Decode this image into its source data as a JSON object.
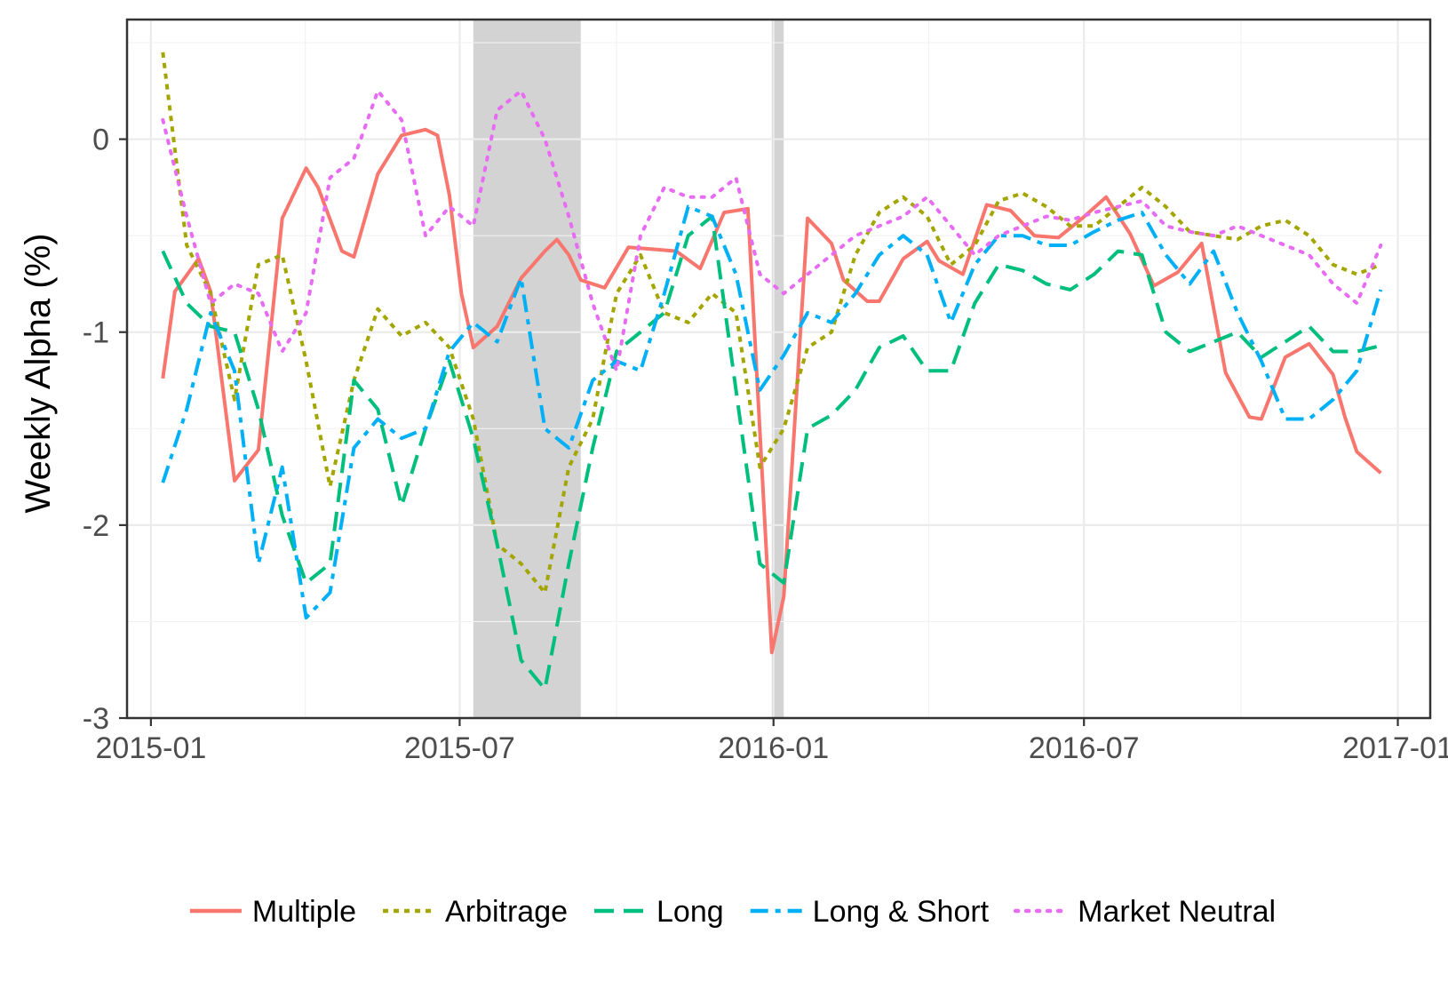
{
  "chart_data": {
    "type": "line",
    "xlabel": "",
    "ylabel": "Weekly Alpha (%)",
    "x_ticks": [
      "2015-01",
      "2015-07",
      "2016-01",
      "2016-07",
      "2017-01"
    ],
    "y_ticks": [
      "0",
      "-1",
      "-2",
      "-3"
    ],
    "xlim": [
      "2014-12-18",
      "2017-01-20"
    ],
    "ylim": [
      -3.0,
      0.62
    ],
    "grid": true,
    "legend_position": "bottom",
    "shaded_periods": [
      {
        "start": "2015-07-09",
        "end": "2015-09-10"
      },
      {
        "start": "2015-12-31",
        "end": "2016-01-07"
      }
    ],
    "series": [
      {
        "name": "Multiple",
        "color": "#F8766D",
        "dash": "solid",
        "x": [
          "2015-01-08",
          "2015-01-15",
          "2015-01-29",
          "2015-02-05",
          "2015-02-19",
          "2015-03-05",
          "2015-03-19",
          "2015-04-02",
          "2015-04-09",
          "2015-04-23",
          "2015-04-30",
          "2015-05-14",
          "2015-05-28",
          "2015-06-11",
          "2015-06-18",
          "2015-06-25",
          "2015-07-02",
          "2015-07-09",
          "2015-07-23",
          "2015-08-06",
          "2015-08-20",
          "2015-08-27",
          "2015-09-03",
          "2015-09-10",
          "2015-09-24",
          "2015-10-08",
          "2015-10-22",
          "2015-11-05",
          "2015-11-19",
          "2015-12-03",
          "2015-12-17",
          "2015-12-31",
          "2016-01-07",
          "2016-01-21",
          "2016-02-04",
          "2016-02-11",
          "2016-02-25",
          "2016-03-03",
          "2016-03-17",
          "2016-03-31",
          "2016-04-07",
          "2016-04-21",
          "2016-05-05",
          "2016-05-19",
          "2016-06-02",
          "2016-06-16",
          "2016-06-30",
          "2016-07-14",
          "2016-07-28",
          "2016-08-11",
          "2016-08-25",
          "2016-09-08",
          "2016-09-22",
          "2016-10-06",
          "2016-10-13",
          "2016-10-27",
          "2016-11-10",
          "2016-11-24",
          "2016-12-01",
          "2016-12-08",
          "2016-12-22"
        ],
        "y": [
          -1.24,
          -0.79,
          -0.62,
          -0.79,
          -1.77,
          -1.61,
          -0.41,
          -0.15,
          -0.25,
          -0.58,
          -0.61,
          -0.18,
          0.02,
          0.05,
          0.02,
          -0.29,
          -0.8,
          -1.08,
          -0.97,
          -0.72,
          -0.58,
          -0.52,
          -0.6,
          -0.73,
          -0.77,
          -0.56,
          -0.57,
          -0.58,
          -0.67,
          -0.38,
          -0.36,
          -2.66,
          -2.37,
          -0.41,
          -0.54,
          -0.73,
          -0.84,
          -0.84,
          -0.62,
          -0.53,
          -0.63,
          -0.7,
          -0.34,
          -0.37,
          -0.5,
          -0.51,
          -0.41,
          -0.3,
          -0.49,
          -0.76,
          -0.69,
          -0.54,
          -1.21,
          -1.44,
          -1.45,
          -1.13,
          -1.06,
          -1.22,
          -1.44,
          -1.62,
          -1.73
        ]
      },
      {
        "name": "Arbitrage",
        "color": "#A3A500",
        "dash": "short",
        "x": [
          "2015-01-08",
          "2015-01-22",
          "2015-02-05",
          "2015-02-19",
          "2015-03-05",
          "2015-03-19",
          "2015-04-02",
          "2015-04-16",
          "2015-04-30",
          "2015-05-14",
          "2015-05-28",
          "2015-06-11",
          "2015-06-25",
          "2015-07-09",
          "2015-07-23",
          "2015-08-06",
          "2015-08-20",
          "2015-09-03",
          "2015-09-17",
          "2015-10-01",
          "2015-10-15",
          "2015-10-29",
          "2015-11-12",
          "2015-11-26",
          "2015-12-10",
          "2015-12-24",
          "2016-01-07",
          "2016-01-21",
          "2016-02-04",
          "2016-02-18",
          "2016-03-03",
          "2016-03-17",
          "2016-03-31",
          "2016-04-14",
          "2016-04-28",
          "2016-05-12",
          "2016-05-26",
          "2016-06-09",
          "2016-06-23",
          "2016-07-07",
          "2016-07-21",
          "2016-08-04",
          "2016-08-18",
          "2016-09-01",
          "2016-09-15",
          "2016-09-29",
          "2016-10-13",
          "2016-10-27",
          "2016-11-10",
          "2016-11-24",
          "2016-12-08",
          "2016-12-22"
        ],
        "y": [
          0.45,
          -0.55,
          -0.8,
          -1.35,
          -0.65,
          -0.6,
          -1.15,
          -1.8,
          -1.25,
          -0.88,
          -1.02,
          -0.95,
          -1.08,
          -1.45,
          -2.1,
          -2.2,
          -2.35,
          -1.7,
          -1.45,
          -0.8,
          -0.6,
          -0.9,
          -0.95,
          -0.8,
          -0.9,
          -1.7,
          -1.5,
          -1.08,
          -1.0,
          -0.6,
          -0.38,
          -0.3,
          -0.4,
          -0.65,
          -0.55,
          -0.32,
          -0.28,
          -0.35,
          -0.45,
          -0.45,
          -0.35,
          -0.25,
          -0.35,
          -0.48,
          -0.5,
          -0.52,
          -0.45,
          -0.42,
          -0.5,
          -0.65,
          -0.7,
          -0.65
        ]
      },
      {
        "name": "Long",
        "color": "#00BF7D",
        "dash": "long",
        "x": [
          "2015-01-08",
          "2015-01-22",
          "2015-02-05",
          "2015-02-19",
          "2015-03-05",
          "2015-03-19",
          "2015-04-02",
          "2015-04-16",
          "2015-04-30",
          "2015-05-14",
          "2015-05-28",
          "2015-06-11",
          "2015-06-25",
          "2015-07-09",
          "2015-07-23",
          "2015-08-06",
          "2015-08-20",
          "2015-09-03",
          "2015-09-17",
          "2015-10-01",
          "2015-10-15",
          "2015-10-29",
          "2015-11-12",
          "2015-11-26",
          "2015-12-10",
          "2015-12-24",
          "2016-01-07",
          "2016-01-21",
          "2016-02-04",
          "2016-02-18",
          "2016-03-03",
          "2016-03-17",
          "2016-03-31",
          "2016-04-14",
          "2016-04-28",
          "2016-05-12",
          "2016-05-26",
          "2016-06-09",
          "2016-06-23",
          "2016-07-07",
          "2016-07-21",
          "2016-08-04",
          "2016-08-18",
          "2016-09-01",
          "2016-09-15",
          "2016-09-29",
          "2016-10-13",
          "2016-10-27",
          "2016-11-10",
          "2016-11-24",
          "2016-12-08",
          "2016-12-22"
        ],
        "y": [
          -0.58,
          -0.85,
          -0.97,
          -1.0,
          -1.4,
          -1.95,
          -2.3,
          -2.2,
          -1.25,
          -1.4,
          -1.9,
          -1.5,
          -1.15,
          -1.55,
          -2.1,
          -2.7,
          -2.85,
          -2.2,
          -1.6,
          -1.1,
          -1.0,
          -0.9,
          -0.5,
          -0.4,
          -1.3,
          -2.2,
          -2.3,
          -1.5,
          -1.43,
          -1.3,
          -1.08,
          -1.02,
          -1.2,
          -1.2,
          -0.85,
          -0.65,
          -0.68,
          -0.75,
          -0.78,
          -0.7,
          -0.58,
          -0.6,
          -1.0,
          -1.1,
          -1.05,
          -1.0,
          -1.13,
          -1.05,
          -0.97,
          -1.1,
          -1.1,
          -1.07
        ]
      },
      {
        "name": "Long & Short",
        "color": "#00B0F6",
        "dash": "dashdot",
        "x": [
          "2015-01-08",
          "2015-01-22",
          "2015-02-05",
          "2015-02-19",
          "2015-03-05",
          "2015-03-19",
          "2015-04-02",
          "2015-04-16",
          "2015-04-30",
          "2015-05-14",
          "2015-05-28",
          "2015-06-11",
          "2015-06-25",
          "2015-07-09",
          "2015-07-23",
          "2015-08-06",
          "2015-08-20",
          "2015-09-03",
          "2015-09-17",
          "2015-10-01",
          "2015-10-15",
          "2015-10-29",
          "2015-11-12",
          "2015-11-26",
          "2015-12-10",
          "2015-12-24",
          "2016-01-07",
          "2016-01-21",
          "2016-02-04",
          "2016-02-18",
          "2016-03-03",
          "2016-03-17",
          "2016-03-31",
          "2016-04-14",
          "2016-04-28",
          "2016-05-12",
          "2016-05-26",
          "2016-06-09",
          "2016-06-23",
          "2016-07-07",
          "2016-07-21",
          "2016-08-04",
          "2016-08-18",
          "2016-09-01",
          "2016-09-15",
          "2016-09-29",
          "2016-10-13",
          "2016-10-27",
          "2016-11-10",
          "2016-11-24",
          "2016-12-08",
          "2016-12-22"
        ],
        "y": [
          -1.78,
          -1.4,
          -0.9,
          -1.2,
          -2.2,
          -1.7,
          -2.48,
          -2.35,
          -1.6,
          -1.45,
          -1.55,
          -1.5,
          -1.1,
          -0.95,
          -1.05,
          -0.72,
          -1.5,
          -1.6,
          -1.25,
          -1.15,
          -1.2,
          -0.8,
          -0.35,
          -0.4,
          -0.7,
          -1.3,
          -1.12,
          -0.9,
          -0.95,
          -0.8,
          -0.6,
          -0.5,
          -0.6,
          -0.95,
          -0.65,
          -0.5,
          -0.5,
          -0.55,
          -0.55,
          -0.48,
          -0.42,
          -0.38,
          -0.6,
          -0.75,
          -0.58,
          -0.9,
          -1.15,
          -1.45,
          -1.45,
          -1.35,
          -1.2,
          -0.78
        ]
      },
      {
        "name": "Market Neutral",
        "color": "#E76BF3",
        "dash": "dotted",
        "x": [
          "2015-01-08",
          "2015-01-22",
          "2015-02-05",
          "2015-02-19",
          "2015-03-05",
          "2015-03-19",
          "2015-04-02",
          "2015-04-16",
          "2015-04-30",
          "2015-05-14",
          "2015-05-28",
          "2015-06-11",
          "2015-06-25",
          "2015-07-09",
          "2015-07-23",
          "2015-08-06",
          "2015-08-20",
          "2015-09-03",
          "2015-09-17",
          "2015-10-01",
          "2015-10-15",
          "2015-10-29",
          "2015-11-12",
          "2015-11-26",
          "2015-12-10",
          "2015-12-24",
          "2016-01-07",
          "2016-01-21",
          "2016-02-04",
          "2016-02-18",
          "2016-03-03",
          "2016-03-17",
          "2016-03-31",
          "2016-04-14",
          "2016-04-28",
          "2016-05-12",
          "2016-05-26",
          "2016-06-09",
          "2016-06-23",
          "2016-07-07",
          "2016-07-21",
          "2016-08-04",
          "2016-08-18",
          "2016-09-01",
          "2016-09-15",
          "2016-09-29",
          "2016-10-13",
          "2016-10-27",
          "2016-11-10",
          "2016-11-24",
          "2016-12-08",
          "2016-12-22"
        ],
        "y": [
          0.1,
          -0.4,
          -0.85,
          -0.75,
          -0.8,
          -1.1,
          -0.9,
          -0.2,
          -0.1,
          0.25,
          0.1,
          -0.5,
          -0.35,
          -0.45,
          0.15,
          0.25,
          0.0,
          -0.4,
          -0.85,
          -1.2,
          -0.5,
          -0.25,
          -0.3,
          -0.3,
          -0.2,
          -0.7,
          -0.8,
          -0.7,
          -0.6,
          -0.5,
          -0.45,
          -0.4,
          -0.3,
          -0.45,
          -0.6,
          -0.5,
          -0.45,
          -0.4,
          -0.42,
          -0.38,
          -0.35,
          -0.32,
          -0.45,
          -0.48,
          -0.5,
          -0.45,
          -0.5,
          -0.55,
          -0.6,
          -0.75,
          -0.85,
          -0.55
        ]
      }
    ]
  }
}
